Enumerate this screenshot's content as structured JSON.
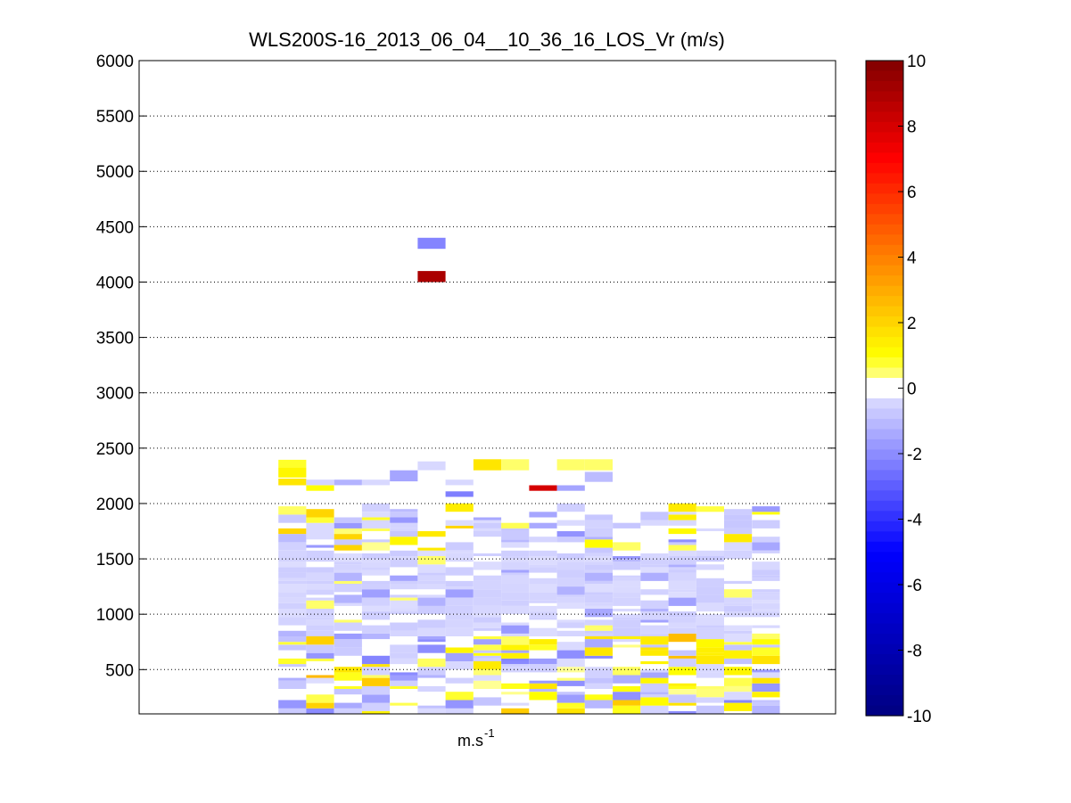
{
  "chart_data": {
    "type": "heatmap",
    "title": "WLS200S-16_2013_06_04__10_36_16_LOS_Vr (m/s)",
    "xlabel": "m.s",
    "xlabel_superscript": "-1",
    "ylabel": "",
    "ylim": [
      100,
      6000
    ],
    "yticks": [
      500,
      1000,
      1500,
      2000,
      2500,
      3000,
      3500,
      4000,
      4500,
      5000,
      5500,
      6000
    ],
    "grid": "horizontal dotted",
    "x_columns": 25,
    "x_columns_with_data": [
      5,
      22
    ],
    "colorbar": {
      "range": [
        -10,
        10
      ],
      "ticks": [
        -10,
        -8,
        -6,
        -4,
        -2,
        0,
        2,
        4,
        6,
        8,
        10
      ],
      "colormap": "blue-white-yellow-red",
      "colors": {
        "min": "#000080",
        "neg_mid": "#0000ff",
        "zero": "#ffffff",
        "pos_low": "#ffff00",
        "pos_mid": "#ff8000",
        "pos_high": "#ff0000",
        "max": "#800000"
      }
    },
    "cells": [
      {
        "col": 5,
        "alt": 4350,
        "dalt": 100,
        "v": -2.2
      },
      {
        "col": 5,
        "alt": 4050,
        "dalt": 100,
        "v": 9.0
      },
      {
        "col": 0,
        "alt": 2360,
        "dalt": 70,
        "v": 0.8
      },
      {
        "col": 0,
        "alt": 2280,
        "dalt": 90,
        "v": 1.2
      },
      {
        "col": 0,
        "alt": 2195,
        "dalt": 60,
        "v": 1.6
      },
      {
        "col": 1,
        "alt": 2190,
        "dalt": 50,
        "v": -0.5
      },
      {
        "col": 1,
        "alt": 2140,
        "dalt": 50,
        "v": 1.0
      },
      {
        "col": 2,
        "alt": 2190,
        "dalt": 50,
        "v": -1.2
      },
      {
        "col": 3,
        "alt": 2190,
        "dalt": 50,
        "v": -0.4
      },
      {
        "col": 4,
        "alt": 2250,
        "dalt": 100,
        "v": -1.5
      },
      {
        "col": 5,
        "alt": 2340,
        "dalt": 80,
        "v": -0.4
      },
      {
        "col": 6,
        "alt": 2190,
        "dalt": 50,
        "v": -0.4
      },
      {
        "col": 6,
        "alt": 2085,
        "dalt": 50,
        "v": -2.3
      },
      {
        "col": 7,
        "alt": 2350,
        "dalt": 100,
        "v": 1.6
      },
      {
        "col": 8,
        "alt": 2350,
        "dalt": 100,
        "v": 0.5
      },
      {
        "col": 9,
        "alt": 2140,
        "dalt": 50,
        "v": 8.0
      },
      {
        "col": 10,
        "alt": 2140,
        "dalt": 50,
        "v": -1.5
      },
      {
        "col": 10,
        "alt": 2350,
        "dalt": 100,
        "v": 0.5
      },
      {
        "col": 11,
        "alt": 2350,
        "dalt": 100,
        "v": 0.5
      },
      {
        "col": 11,
        "alt": 2240,
        "dalt": 90,
        "v": -1.0
      }
    ]
  }
}
